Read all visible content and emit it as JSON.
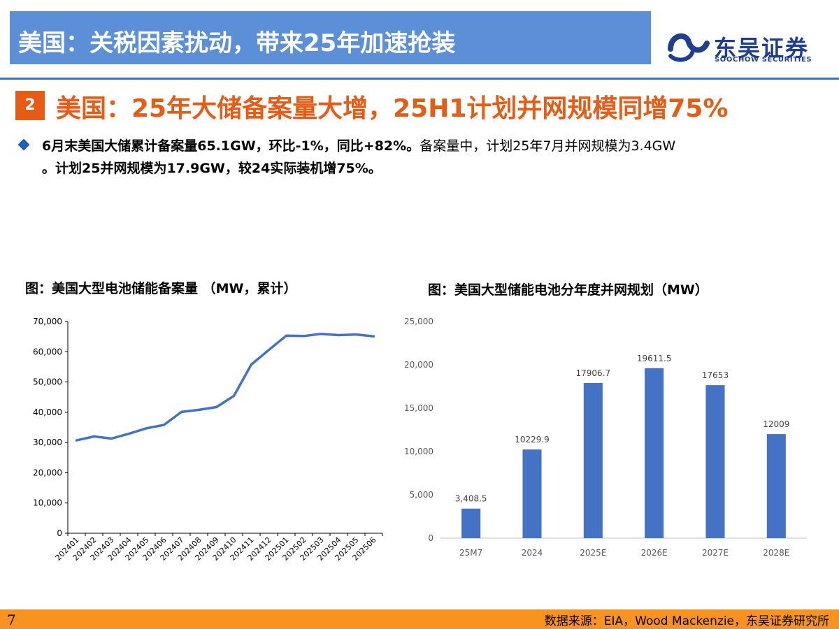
{
  "header": {
    "title": "美国：关税因素扰动，带来25年加速抢装",
    "logo_cn": "东吴证券",
    "logo_en": "SOOCHOW SECURITIES",
    "accent_color": "#5b8fd8"
  },
  "section": {
    "number": "2",
    "title": "美国：25年大储备案量大增，25H1计划并网规模同增75%",
    "color": "#e85b14"
  },
  "summary": {
    "bold_part": "6月末美国大储累计备案量65.1GW，环比-1%，同比+82%。",
    "normal_part": "备案量中，计划25年7月并网规模为3.4GW",
    "bold_part2": "。计划25并网规模为17.9GW，较24实际装机增75%。"
  },
  "chart_data": [
    {
      "type": "line",
      "title": "图：美国大型电池储能备案量 （MW，累计）",
      "x": [
        "202401",
        "202402",
        "202403",
        "202404",
        "202405",
        "202406",
        "202407",
        "202408",
        "202409",
        "202410",
        "202411",
        "202412",
        "202501",
        "202502",
        "202503",
        "202504",
        "202505",
        "202506"
      ],
      "values": [
        30700,
        32000,
        31300,
        32900,
        34700,
        35800,
        40100,
        40800,
        41700,
        45400,
        55800,
        60600,
        65300,
        65200,
        65900,
        65500,
        65700,
        65100
      ],
      "ylim": [
        0,
        70000
      ],
      "yticks": [
        "0",
        "10,000",
        "20,000",
        "30,000",
        "40,000",
        "50,000",
        "60,000",
        "70,000"
      ],
      "color": "#4472c4",
      "grid": false
    },
    {
      "type": "bar",
      "title": "图：美国大型储能电池分年度并网规划（MW）",
      "categories": [
        "25M7",
        "2024",
        "2025E",
        "2026E",
        "2027E",
        "2028E"
      ],
      "values": [
        3408.5,
        10229.9,
        17906.7,
        19611.5,
        17653,
        12009
      ],
      "labels": [
        "3,408.5",
        "10229.9",
        "17906.7",
        "19611.5",
        "17653",
        "12009"
      ],
      "ylim": [
        0,
        25000
      ],
      "yticks": [
        "0",
        "5,000",
        "10,000",
        "15,000",
        "20,000",
        "25,000"
      ],
      "color": "#4472c4",
      "grid": false
    }
  ],
  "footer": {
    "page_number": "7",
    "source": "数据来源：EIA，Wood Mackenzie，东吴证券研究所",
    "color": "#f7931e"
  }
}
